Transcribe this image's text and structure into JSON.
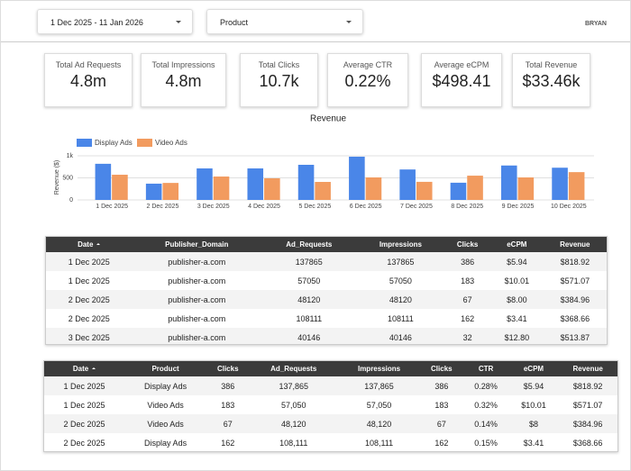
{
  "filters": [
    {
      "label": "1 Dec 2025 - 11 Jan 2026"
    },
    {
      "label": "Product"
    }
  ],
  "logo": "BRYAN",
  "kpis": [
    {
      "label": "Total Ad Requests",
      "value": "4.8m"
    },
    {
      "label": "Total Impressions",
      "value": "4.8m"
    },
    {
      "label": "Total Clicks",
      "value": "10.7k"
    },
    {
      "label": "Average CTR",
      "value": "0.22%"
    },
    {
      "label": "Average eCPM",
      "value": "$498.41"
    },
    {
      "label": "Total Revenue",
      "value": "$33.46k"
    }
  ],
  "chart_data": {
    "type": "bar",
    "title": "Revenue",
    "y_label": "Revenue ($)",
    "categories": [
      "1 Dec 2025",
      "2 Dec 2025",
      "3 Dec 2025",
      "4 Dec 2025",
      "5 Dec 2025",
      "6 Dec 2025",
      "7 Dec 2025",
      "8 Dec 2025",
      "9 Dec 2025",
      "10 Dec 2025"
    ],
    "series": [
      {
        "name": "Display Ads",
        "color": "#4a86e8",
        "values": [
          818.92,
          368.66,
          714,
          714,
          796,
          980,
          690,
          390,
          780,
          730
        ]
      },
      {
        "name": "Video Ads",
        "color": "#f29b5f",
        "values": [
          571.07,
          384.96,
          530,
          490,
          408,
          510,
          410,
          550,
          510,
          630
        ]
      }
    ],
    "ylim": [
      0,
      1000
    ],
    "yticks": [
      0,
      500,
      {
        "value": 1000,
        "label": "1k"
      }
    ],
    "grid": true,
    "legend": "top-left"
  },
  "table1": {
    "columns": [
      "Date",
      "Publisher_Domain",
      "Ad_Requests",
      "Impressions",
      "Clicks",
      "eCPM",
      "Revenue"
    ],
    "rows": [
      [
        "1 Dec 2025",
        "publisher-a.com",
        "137865",
        "137865",
        "386",
        "$5.94",
        "$818.92"
      ],
      [
        "1 Dec 2025",
        "publisher-a.com",
        "57050",
        "57050",
        "183",
        "$10.01",
        "$571.07"
      ],
      [
        "2 Dec 2025",
        "publisher-a.com",
        "48120",
        "48120",
        "67",
        "$8.00",
        "$384.96"
      ],
      [
        "2 Dec 2025",
        "publisher-a.com",
        "108111",
        "108111",
        "162",
        "$3.41",
        "$368.66"
      ],
      [
        "3 Dec 2025",
        "publisher-a.com",
        "40146",
        "40146",
        "32",
        "$12.80",
        "$513.87"
      ]
    ]
  },
  "table2": {
    "columns": [
      "Date",
      "Product",
      "Clicks",
      "Ad_Requests",
      "Impressions",
      "Clicks",
      "CTR",
      "eCPM",
      "Revenue"
    ],
    "rows": [
      [
        "1 Dec 2025",
        "Display Ads",
        "386",
        "137,865",
        "137,865",
        "386",
        "0.28%",
        "$5.94",
        "$818.92"
      ],
      [
        "1 Dec 2025",
        "Video Ads",
        "183",
        "57,050",
        "57,050",
        "183",
        "0.32%",
        "$10.01",
        "$571.07"
      ],
      [
        "2 Dec 2025",
        "Video Ads",
        "67",
        "48,120",
        "48,120",
        "67",
        "0.14%",
        "$8",
        "$384.96"
      ],
      [
        "2 Dec 2025",
        "Display Ads",
        "162",
        "108,111",
        "108,111",
        "162",
        "0.15%",
        "$3.41",
        "$368.66"
      ]
    ]
  }
}
